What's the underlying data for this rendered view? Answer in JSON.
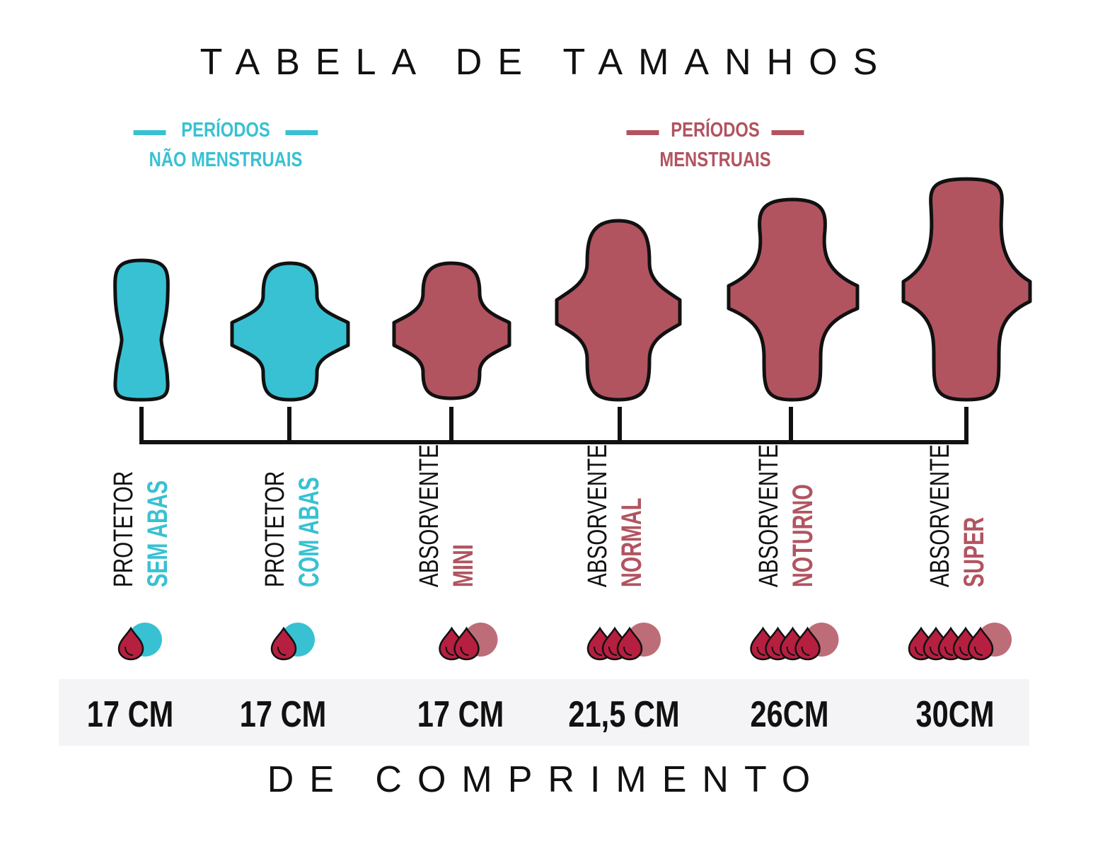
{
  "title": "TABELA DE TAMANHOS",
  "footer": "DE COMPRIMENTO",
  "colors": {
    "teal": "#38c1d3",
    "wine": "#b15460",
    "drop": "#b61f3f",
    "ink": "#111111"
  },
  "legend": {
    "non_menstrual": {
      "line1": "PERÍODOS",
      "line2": "NÃO MENSTRUAIS"
    },
    "menstrual": {
      "line1": "PERÍODOS",
      "line2": "MENSTRUAIS"
    }
  },
  "products": [
    {
      "type": "PROTETOR",
      "name": "SEM ABAS",
      "size": "17 CM",
      "drops": 1,
      "group": "non_menstrual",
      "icon": "panty-liner-no-wings-icon"
    },
    {
      "type": "PROTETOR",
      "name": "COM ABAS",
      "size": "17 CM",
      "drops": 1,
      "group": "non_menstrual",
      "icon": "panty-liner-with-wings-icon"
    },
    {
      "type": "ABSORVENTE",
      "name": "MINI",
      "size": "17 CM",
      "drops": 2,
      "group": "menstrual",
      "icon": "pad-mini-icon"
    },
    {
      "type": "ABSORVENTE",
      "name": "NORMAL",
      "size": "21,5 CM",
      "drops": 3,
      "group": "menstrual",
      "icon": "pad-normal-icon"
    },
    {
      "type": "ABSORVENTE",
      "name": "NOTURNO",
      "size": "26CM",
      "drops": 4,
      "group": "menstrual",
      "icon": "pad-night-icon"
    },
    {
      "type": "ABSORVENTE",
      "name": "SUPER",
      "size": "30CM",
      "drops": 5,
      "group": "menstrual",
      "icon": "pad-super-icon"
    }
  ]
}
